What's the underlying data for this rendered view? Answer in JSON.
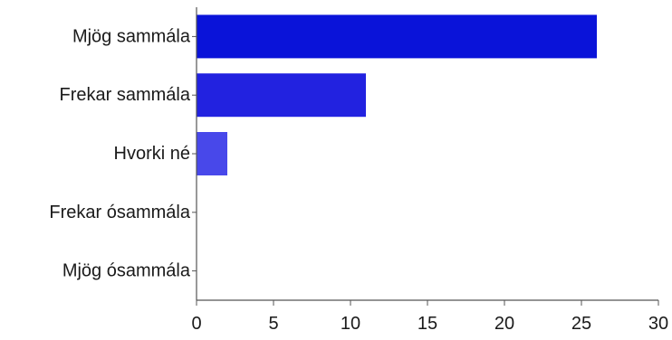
{
  "chart_data": {
    "type": "bar",
    "orientation": "horizontal",
    "categories": [
      "Mjög sammála",
      "Frekar sammála",
      "Hvorki né",
      "Frekar ósammála",
      "Mjög ósammála"
    ],
    "values": [
      26,
      11,
      2,
      0,
      0
    ],
    "bar_colors": [
      "#0a13d9",
      "#2222e0",
      "#4848ea",
      "#6a6af0",
      "#8c8cf5"
    ],
    "xlim": [
      0,
      30
    ],
    "x_ticks": [
      "0",
      "5",
      "10",
      "15",
      "20",
      "25",
      "30"
    ],
    "grid": false,
    "title": "",
    "xlabel": "",
    "ylabel": ""
  }
}
